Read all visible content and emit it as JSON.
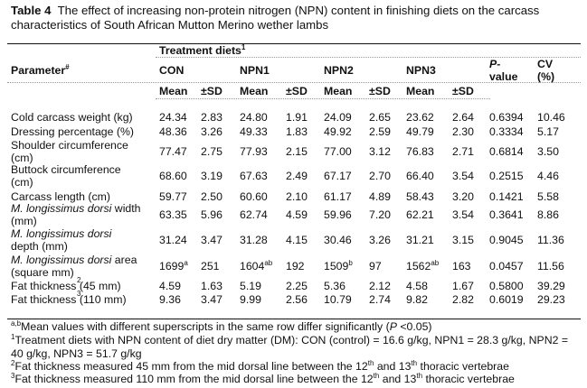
{
  "title": {
    "label": "Table 4",
    "text": "The effect of increasing non-protein nitrogen (NPN) content in finishing diets on the carcass characteristics of South African Mutton Merino wether lambs"
  },
  "header": {
    "group": "Treatment diets",
    "group_sup": "1",
    "parameter": "Parameter",
    "parameter_sup": "#",
    "diets": [
      "CON",
      "NPN1",
      "NPN2",
      "NPN3"
    ],
    "p_value": [
      "P-",
      "value"
    ],
    "cv": [
      "CV",
      "(%)"
    ],
    "mean": "Mean",
    "sd": "±SD"
  },
  "rows": [
    {
      "param": [
        "Cold carcass weight (kg)"
      ],
      "values": [
        "24.34",
        "2.83",
        "24.80",
        "1.91",
        "24.09",
        "2.65",
        "23.62",
        "2.64",
        "0.6394",
        "10.46"
      ]
    },
    {
      "param": [
        "Dressing percentage (%)"
      ],
      "values": [
        "48.36",
        "3.26",
        "49.33",
        "1.83",
        "49.92",
        "2.59",
        "49.79",
        "2.30",
        "0.3334",
        "5.17"
      ]
    },
    {
      "param": [
        "Shoulder circumference",
        "(cm)"
      ],
      "values": [
        "77.47",
        "2.75",
        "77.93",
        "2.15",
        "77.00",
        "3.12",
        "76.83",
        "2.71",
        "0.6814",
        "3.50"
      ]
    },
    {
      "param": [
        "Buttock circumference",
        "(cm)"
      ],
      "values": [
        "68.60",
        "3.19",
        "67.63",
        "2.49",
        "67.17",
        "2.70",
        "66.40",
        "3.54",
        "0.2515",
        "4.46"
      ]
    },
    {
      "param": [
        "Carcass length (cm)"
      ],
      "values": [
        "59.77",
        "2.50",
        "60.60",
        "2.10",
        "61.17",
        "4.89",
        "58.43",
        "3.20",
        "0.1421",
        "5.58"
      ]
    },
    {
      "param": [
        "M. longissimus dorsi width",
        "(mm)"
      ],
      "italic": "M. longissimus dorsi",
      "values": [
        "63.35",
        "5.96",
        "62.74",
        "4.59",
        "59.96",
        "7.20",
        "62.21",
        "3.54",
        "0.3641",
        "8.86"
      ]
    },
    {
      "param": [
        "M. longissimus dorsi",
        "depth (mm)"
      ],
      "italic": "M. longissimus dorsi",
      "values": [
        "31.24",
        "3.47",
        "31.28",
        "4.15",
        "30.46",
        "3.26",
        "31.21",
        "3.15",
        "0.9045",
        "11.36"
      ]
    },
    {
      "param": [
        "M. longissimus dorsi area",
        "(square mm)"
      ],
      "italic": "M. longissimus dorsi",
      "values": [
        "1699",
        "251",
        "1604",
        "192",
        "1509",
        "97",
        "1562",
        "163",
        "0.0457",
        "11.56"
      ],
      "sups": [
        "a",
        "",
        "ab",
        "",
        "b",
        "",
        "ab",
        "",
        "",
        ""
      ]
    },
    {
      "param": [
        "Fat thickness (45 mm)"
      ],
      "param_sup": "2",
      "values": [
        "4.59",
        "1.63",
        "5.19",
        "2.25",
        "5.36",
        "2.12",
        "4.58",
        "1.67",
        "0.5800",
        "39.29"
      ]
    },
    {
      "param": [
        "Fat thickness (110 mm)"
      ],
      "param_sup": "3",
      "values": [
        "9.36",
        "3.47",
        "9.99",
        "2.56",
        "10.79",
        "2.74",
        "9.82",
        "2.82",
        "0.6019",
        "29.23"
      ]
    }
  ],
  "footnotes": [
    {
      "sup": "a,b",
      "text": "Mean values with different superscripts in the same row differ significantly (",
      "italic": "P",
      "tail": " <0.05)"
    },
    {
      "sup": "1",
      "text": "Treatment diets with NPN content of diet dry matter (DM): CON (control) = 16.6 g/kg, NPN1 = 28.3 g/kg, NPN2 ="
    },
    {
      "text": "40 g/kg, NPN3 = 51.7 g/kg"
    },
    {
      "sup": "2",
      "text": "Fat thickness measured 45 mm from the mid dorsal line between the 12",
      "s1": "th",
      "mid": " and 13",
      "s2": "th",
      "tail": " thoracic vertebrae"
    },
    {
      "sup": "3",
      "text": "Fat thickness measured 110 mm from the mid dorsal line between the 12",
      "s1": "th",
      "mid": " and 13",
      "s2": "th",
      "tail": " thoracic vertebrae"
    }
  ]
}
